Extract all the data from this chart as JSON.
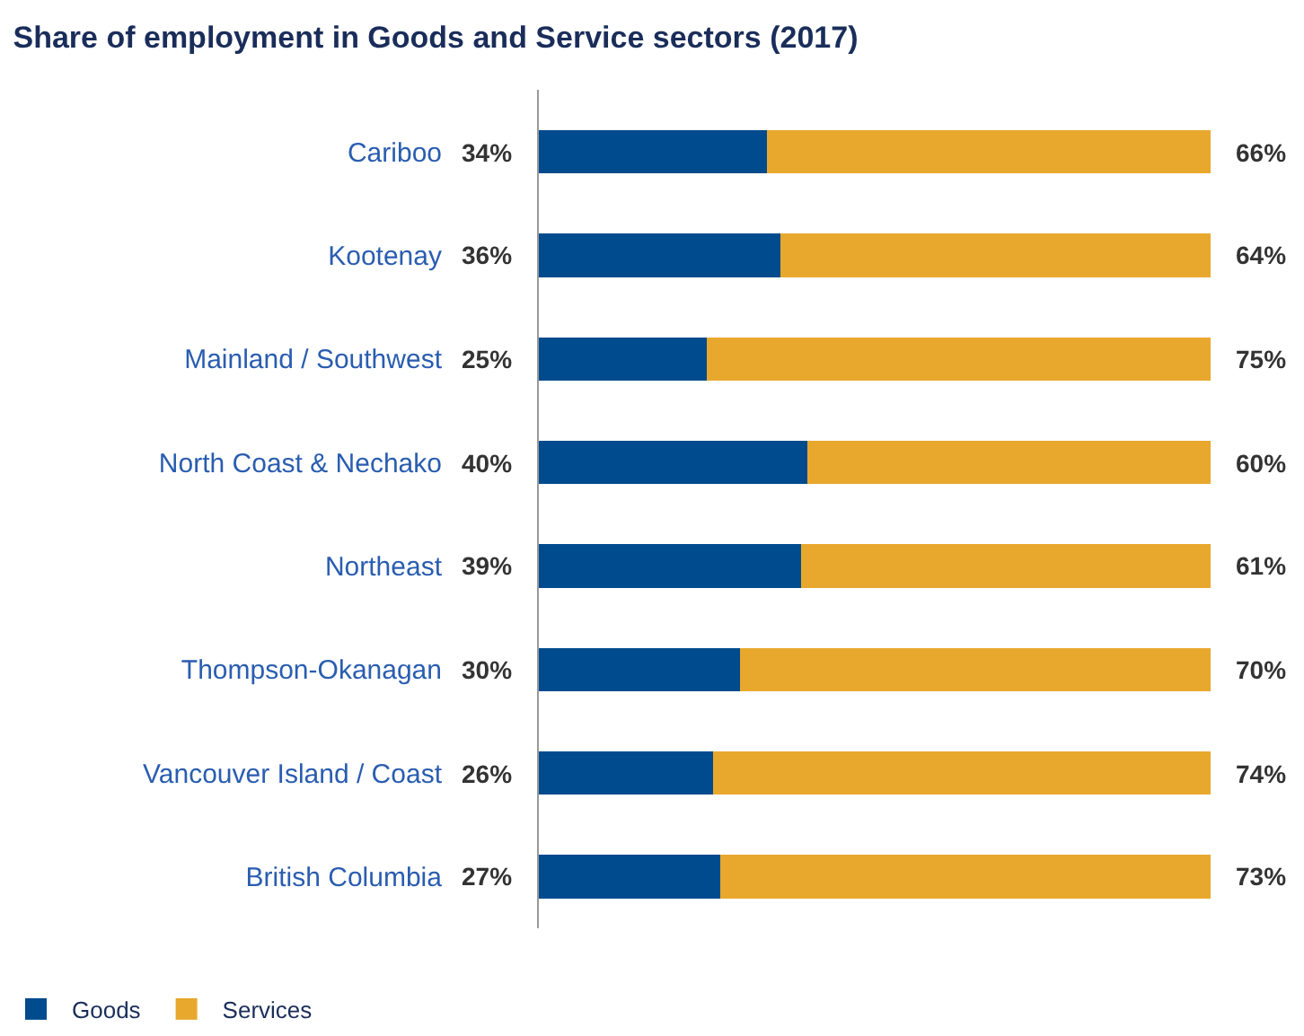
{
  "chart_data": {
    "type": "bar",
    "orientation": "horizontal",
    "stacked": true,
    "title": "Share of employment in Goods and Service sectors (2017)",
    "categories": [
      "Cariboo",
      "Kootenay",
      "Mainland / Southwest",
      "North Coast & Nechako",
      "Northeast",
      "Thompson-Okanagan",
      "Vancouver Island / Coast",
      "British Columbia"
    ],
    "series": [
      {
        "name": "Goods",
        "color": "#004b8d",
        "values": [
          34,
          36,
          25,
          40,
          39,
          30,
          26,
          27
        ],
        "value_labels": [
          "34%",
          "36%",
          "25%",
          "40%",
          "39%",
          "30%",
          "26%",
          "27%"
        ]
      },
      {
        "name": "Services",
        "color": "#e8a82e",
        "values": [
          66,
          64,
          75,
          60,
          61,
          70,
          74,
          73
        ],
        "value_labels": [
          "66%",
          "64%",
          "75%",
          "60%",
          "61%",
          "70%",
          "74%",
          "73%"
        ]
      }
    ],
    "xlim": [
      0,
      100
    ],
    "tick_labels": "y",
    "legend": "bottom left"
  }
}
